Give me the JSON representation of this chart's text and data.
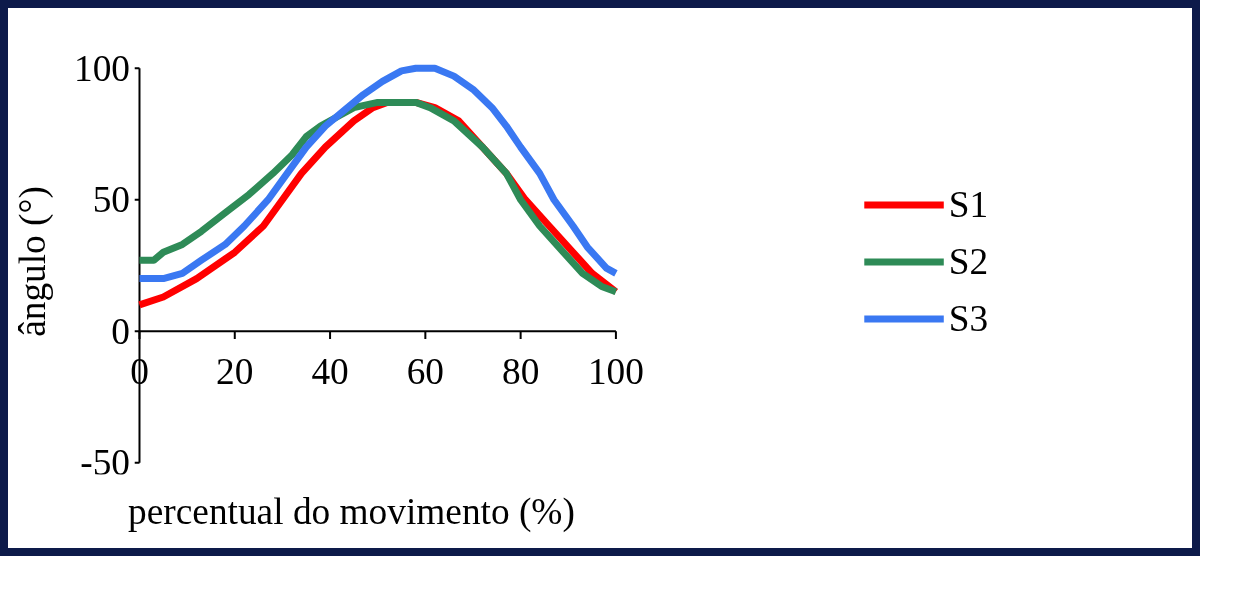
{
  "chart_data": {
    "type": "line",
    "xlabel": "percentual do movimento (%)",
    "ylabel": "ângulo (°)",
    "xlim": [
      0,
      100
    ],
    "ylim": [
      -50,
      100
    ],
    "xticks": [
      0,
      20,
      40,
      60,
      80,
      100
    ],
    "yticks": [
      -50,
      0,
      50,
      100
    ],
    "grid": false,
    "legend": "right",
    "line_style": "solid",
    "marker": "none",
    "series": [
      {
        "name": "S1",
        "color": "#ff0000",
        "x": [
          0,
          5,
          12,
          20,
          26,
          30,
          34,
          39,
          45,
          49,
          52,
          58,
          62,
          67,
          72,
          77,
          81,
          86,
          91,
          95,
          100
        ],
        "values": [
          10,
          13,
          20,
          30,
          40,
          50,
          60,
          70,
          80,
          85,
          87,
          87,
          85,
          80,
          70,
          60,
          50,
          40,
          30,
          22,
          15
        ]
      },
      {
        "name": "S2",
        "color": "#2e8b57",
        "x": [
          0,
          3,
          5,
          9,
          13,
          18,
          23,
          28,
          32,
          35,
          38,
          42,
          45,
          50,
          58,
          61,
          66,
          72,
          77,
          80,
          84,
          89,
          93,
          97,
          100
        ],
        "values": [
          27,
          27,
          30,
          33,
          38,
          45,
          52,
          60,
          67,
          74,
          78,
          82,
          85,
          87,
          87,
          85,
          80,
          70,
          60,
          50,
          40,
          30,
          22,
          17,
          15
        ]
      },
      {
        "name": "S3",
        "color": "#3a78f2",
        "x": [
          0,
          5,
          9,
          13,
          18,
          22,
          27,
          31,
          35,
          39,
          43,
          47,
          51,
          55,
          58,
          62,
          66,
          70,
          74,
          77,
          80,
          84,
          87,
          91,
          94,
          98,
          100
        ],
        "values": [
          20,
          20,
          22,
          27,
          33,
          40,
          50,
          60,
          70,
          78,
          84,
          90,
          95,
          99,
          100,
          100,
          97,
          92,
          85,
          78,
          70,
          60,
          50,
          40,
          32,
          24,
          22
        ]
      }
    ]
  }
}
